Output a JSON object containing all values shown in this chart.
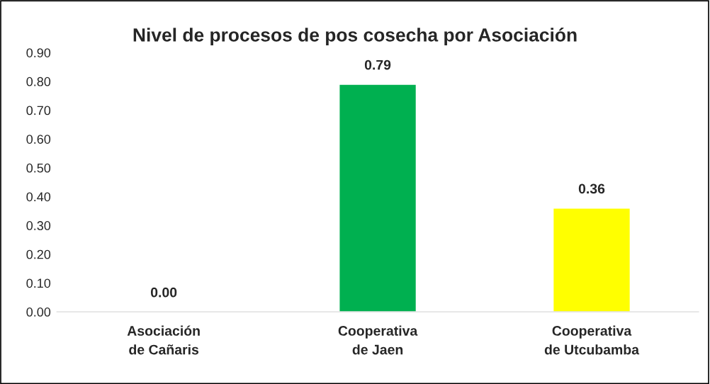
{
  "chart_data": {
    "type": "bar",
    "title": "Nivel de procesos de pos cosecha por Asociación",
    "categories": [
      "Asociación\nde Cañaris",
      "Cooperativa\nde Jaen",
      "Cooperativa\nde Utcubamba"
    ],
    "values": [
      0.0,
      0.79,
      0.36
    ],
    "colors": [
      null,
      "#00b050",
      "#ffff00"
    ],
    "value_labels": [
      "0.00",
      "0.79",
      "0.36"
    ],
    "ylim": [
      0,
      0.9
    ],
    "yticks": [
      {
        "value": 0,
        "label": "0.00"
      },
      {
        "value": 0.1,
        "label": "0.10"
      },
      {
        "value": 0.2,
        "label": "0.20"
      },
      {
        "value": 0.3,
        "label": "0.30"
      },
      {
        "value": 0.4,
        "label": "0.40"
      },
      {
        "value": 0.5,
        "label": "0.50"
      },
      {
        "value": 0.6,
        "label": "0.60"
      },
      {
        "value": 0.7,
        "label": "0.70"
      },
      {
        "value": 0.8,
        "label": "0.80"
      },
      {
        "value": 0.9,
        "label": "0.90"
      }
    ],
    "grid": false,
    "legend": false
  }
}
